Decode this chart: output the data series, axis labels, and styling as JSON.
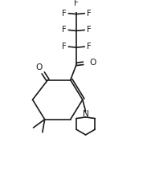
{
  "bg_color": "#ffffff",
  "line_color": "#1a1a1a",
  "line_width": 1.2,
  "font_size": 7.2,
  "figsize": [
    1.83,
    2.23
  ],
  "dpi": 100,
  "xlim": [
    0,
    9
  ],
  "ylim": [
    0,
    11
  ]
}
